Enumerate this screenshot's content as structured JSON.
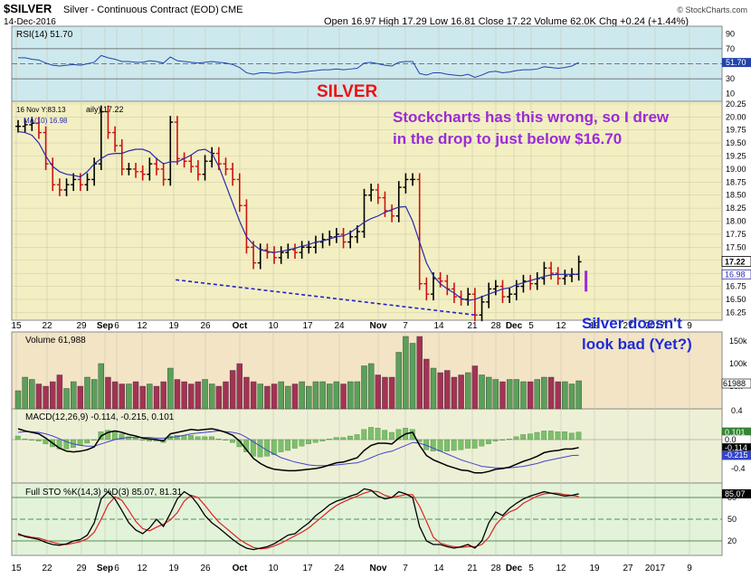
{
  "header": {
    "symbol": "$SILVER",
    "description": "Silver - Continuous Contract (EOD)",
    "exchange": "CME",
    "date": "14-Dec-2016",
    "ohlc": "Open 16.97  High 17.29  Low 16.81  Close 17.22  Volume 62.0K  Chg +0.24 (+1.44%)",
    "watermark": "© StockCharts.com"
  },
  "colors": {
    "up_bar": "#000000",
    "down_bar": "#cc1111",
    "ma_line": "#2a2aaa",
    "annotation_purple": "#9b2bd6",
    "annotation_blue": "#1c2bd6",
    "title_red": "#ee1111",
    "rsi_fill": "#cde9ee",
    "price_fill": "#f3efc2",
    "volume_fill": "#f3e4c6",
    "macd_fill": "#eef0d6",
    "sto_fill": "#e2f3d9",
    "trendline": "#2222cc"
  },
  "annotations": {
    "title": "SILVER",
    "note1": "Stockcharts has this wrong, so I drew",
    "note2": "in the drop to just below $16.70",
    "note3": "Silver doesn't",
    "note4": "look bad (Yet?)"
  },
  "chart_data": {
    "type": "ohlc",
    "x_ticks": [
      "15",
      "22",
      "29",
      "Sep",
      "6",
      "12",
      "19",
      "26",
      "Oct",
      "10",
      "17",
      "24",
      "Nov",
      "7",
      "14",
      "21",
      "28",
      "Dec",
      "5",
      "12",
      "19",
      "27",
      "2017",
      "9"
    ],
    "price": {
      "legend": [
        "16 Nov Y:83.13",
        "aily) 17.22",
        "MA(10) 16.98"
      ],
      "ylim": [
        16.1,
        20.3
      ],
      "y_ticks": [
        "20.25",
        "20.00",
        "19.75",
        "19.50",
        "19.25",
        "19.00",
        "18.75",
        "18.50",
        "18.25",
        "18.00",
        "17.75",
        "17.50",
        "17.25",
        "17.00",
        "16.75",
        "16.50",
        "16.25"
      ],
      "last_close": "17.22",
      "last_ma": "16.98",
      "closes": [
        19.82,
        19.85,
        19.88,
        19.7,
        19.1,
        18.7,
        18.6,
        18.7,
        18.8,
        18.7,
        18.8,
        19.1,
        20.1,
        19.7,
        19.45,
        19.0,
        19.0,
        18.95,
        18.9,
        19.1,
        19.0,
        18.8,
        19.9,
        19.2,
        19.15,
        19.05,
        18.9,
        19.15,
        19.3,
        19.1,
        19.0,
        18.8,
        18.3,
        17.5,
        17.2,
        17.45,
        17.4,
        17.3,
        17.4,
        17.45,
        17.4,
        17.5,
        17.5,
        17.6,
        17.65,
        17.7,
        17.75,
        17.6,
        17.7,
        17.8,
        18.5,
        18.6,
        18.45,
        18.2,
        18.1,
        18.65,
        18.8,
        18.8,
        16.8,
        16.6,
        16.9,
        16.85,
        16.7,
        16.55,
        16.5,
        16.6,
        16.2,
        16.45,
        16.7,
        16.75,
        16.55,
        16.6,
        16.75,
        16.85,
        16.8,
        16.9,
        17.1,
        17.0,
        16.9,
        16.95,
        16.98,
        17.22
      ],
      "ma10": [
        19.72,
        19.7,
        19.65,
        19.5,
        19.25,
        19.05,
        18.95,
        18.9,
        18.88,
        18.85,
        18.95,
        19.1,
        19.2,
        19.28,
        19.3,
        19.3,
        19.35,
        19.38,
        19.38,
        19.33,
        19.2,
        19.1,
        19.14,
        19.14,
        19.2,
        19.27,
        19.36,
        19.38,
        19.3,
        19.05,
        18.7,
        18.35,
        18.0,
        17.7,
        17.55,
        17.45,
        17.42,
        17.4,
        17.42,
        17.45,
        17.48,
        17.52,
        17.55,
        17.6,
        17.62,
        17.66,
        17.7,
        17.72,
        17.78,
        17.88,
        17.98,
        18.05,
        18.1,
        18.17,
        18.22,
        18.27,
        18.28,
        18.0,
        17.6,
        17.2,
        16.95,
        16.8,
        16.7,
        16.62,
        16.52,
        16.48,
        16.5,
        16.55,
        16.6,
        16.65,
        16.7,
        16.72,
        16.78,
        16.82,
        16.86,
        16.9,
        16.94,
        16.97,
        16.98,
        16.98,
        16.98,
        16.98
      ],
      "drawn_drop_to": 16.65,
      "trendline": {
        "from_close_index": 66,
        "from": 16.2,
        "to_date": "19",
        "to": 16.88
      }
    },
    "rsi": {
      "label": "RSI(14) 51.70",
      "value": 51.7,
      "ylim": [
        0,
        100
      ],
      "y_ticks": [
        "90",
        "70",
        "50",
        "30",
        "10"
      ],
      "values": [
        58,
        58,
        56,
        55,
        51,
        48,
        47,
        48,
        49,
        48,
        50,
        52,
        61,
        58,
        56,
        53,
        53,
        52,
        52,
        54,
        53,
        51,
        59,
        54,
        53,
        52,
        51,
        52,
        53,
        52,
        51,
        49,
        45,
        38,
        36,
        38,
        38,
        37,
        38,
        39,
        38,
        39,
        40,
        41,
        42,
        42,
        43,
        42,
        43,
        44,
        51,
        52,
        50,
        48,
        47,
        52,
        53,
        53,
        37,
        35,
        38,
        38,
        36,
        35,
        34,
        36,
        32,
        35,
        39,
        40,
        38,
        39,
        41,
        42,
        42,
        43,
        46,
        45,
        44,
        45,
        47,
        51.7
      ]
    },
    "volume": {
      "label": "Volume 61,988",
      "y_ticks": [
        "150k",
        "100k",
        "50k"
      ],
      "last": "61988",
      "values_k": [
        40,
        70,
        65,
        55,
        50,
        60,
        75,
        45,
        60,
        50,
        70,
        65,
        100,
        70,
        60,
        55,
        55,
        60,
        50,
        55,
        50,
        60,
        90,
        65,
        60,
        55,
        60,
        65,
        55,
        50,
        60,
        85,
        100,
        70,
        60,
        55,
        50,
        55,
        60,
        50,
        55,
        60,
        50,
        60,
        60,
        55,
        60,
        55,
        60,
        60,
        95,
        100,
        75,
        70,
        70,
        125,
        160,
        145,
        160,
        110,
        90,
        80,
        85,
        70,
        75,
        80,
        95,
        75,
        70,
        65,
        60,
        65,
        65,
        60,
        60,
        65,
        70,
        70,
        60,
        60,
        55,
        62
      ]
    },
    "macd": {
      "label": "MACD(12,26,9) -0.114, -0.215, 0.101",
      "y_ticks": [
        "0.4",
        "0.0",
        "-0.4"
      ],
      "markers": [
        "0.101",
        "0.0",
        "-0.114",
        "-0.215"
      ],
      "macd": [
        0.15,
        0.12,
        0.1,
        0.08,
        0.02,
        -0.05,
        -0.12,
        -0.16,
        -0.17,
        -0.16,
        -0.14,
        -0.1,
        0.05,
        0.1,
        0.12,
        0.1,
        0.07,
        0.05,
        0.02,
        0.01,
        0,
        -0.02,
        0.08,
        0.1,
        0.12,
        0.14,
        0.13,
        0.14,
        0.15,
        0.13,
        0.1,
        0.06,
        -0.02,
        -0.14,
        -0.26,
        -0.33,
        -0.38,
        -0.41,
        -0.42,
        -0.43,
        -0.43,
        -0.42,
        -0.41,
        -0.4,
        -0.38,
        -0.35,
        -0.32,
        -0.31,
        -0.28,
        -0.25,
        -0.15,
        -0.08,
        -0.05,
        -0.05,
        -0.06,
        0.02,
        0.08,
        0.1,
        -0.08,
        -0.22,
        -0.28,
        -0.32,
        -0.36,
        -0.39,
        -0.42,
        -0.43,
        -0.46,
        -0.46,
        -0.44,
        -0.41,
        -0.4,
        -0.38,
        -0.34,
        -0.3,
        -0.27,
        -0.23,
        -0.18,
        -0.16,
        -0.15,
        -0.13,
        -0.13,
        -0.11
      ],
      "signal": [
        0.1,
        0.11,
        0.11,
        0.1,
        0.08,
        0.05,
        0.01,
        -0.03,
        -0.06,
        -0.08,
        -0.09,
        -0.09,
        -0.06,
        -0.03,
        0,
        0.02,
        0.03,
        0.03,
        0.03,
        0.03,
        0.02,
        0.02,
        0.03,
        0.04,
        0.06,
        0.08,
        0.09,
        0.1,
        0.11,
        0.12,
        0.11,
        0.1,
        0.08,
        0.03,
        -0.03,
        -0.09,
        -0.15,
        -0.2,
        -0.25,
        -0.28,
        -0.31,
        -0.33,
        -0.35,
        -0.36,
        -0.36,
        -0.36,
        -0.35,
        -0.34,
        -0.33,
        -0.32,
        -0.29,
        -0.25,
        -0.21,
        -0.18,
        -0.16,
        -0.12,
        -0.08,
        -0.04,
        -0.05,
        -0.08,
        -0.12,
        -0.16,
        -0.2,
        -0.24,
        -0.28,
        -0.31,
        -0.34,
        -0.37,
        -0.38,
        -0.39,
        -0.39,
        -0.39,
        -0.38,
        -0.37,
        -0.35,
        -0.33,
        -0.3,
        -0.28,
        -0.26,
        -0.24,
        -0.22,
        -0.215
      ]
    },
    "sto": {
      "label": "Full STO %K(14,3) %D(3) 85.07, 81.31",
      "y_ticks": [
        "80",
        "50",
        "20"
      ],
      "last_k": "85.07",
      "k": [
        30,
        26,
        24,
        22,
        18,
        15,
        14,
        16,
        20,
        22,
        28,
        45,
        78,
        88,
        78,
        62,
        45,
        35,
        30,
        38,
        50,
        40,
        58,
        78,
        88,
        82,
        70,
        55,
        45,
        38,
        30,
        22,
        15,
        10,
        8,
        10,
        12,
        16,
        22,
        28,
        30,
        38,
        45,
        55,
        62,
        70,
        75,
        78,
        82,
        85,
        92,
        90,
        82,
        78,
        80,
        88,
        85,
        80,
        40,
        20,
        15,
        15,
        12,
        10,
        12,
        15,
        10,
        20,
        45,
        60,
        55,
        65,
        72,
        78,
        82,
        85,
        88,
        86,
        84,
        82,
        83,
        85.07
      ],
      "d": [
        28,
        27,
        25,
        24,
        21,
        18,
        16,
        15,
        17,
        19,
        23,
        32,
        50,
        70,
        81,
        76,
        62,
        47,
        37,
        34,
        39,
        43,
        49,
        59,
        75,
        83,
        80,
        69,
        57,
        46,
        38,
        30,
        22,
        16,
        11,
        9,
        10,
        13,
        17,
        22,
        27,
        32,
        38,
        46,
        54,
        62,
        69,
        74,
        78,
        82,
        86,
        89,
        88,
        83,
        80,
        82,
        84,
        84,
        68,
        47,
        25,
        17,
        14,
        12,
        11,
        12,
        12,
        15,
        25,
        42,
        53,
        60,
        64,
        72,
        77,
        82,
        85,
        86,
        86,
        84,
        83,
        81.31
      ]
    }
  }
}
